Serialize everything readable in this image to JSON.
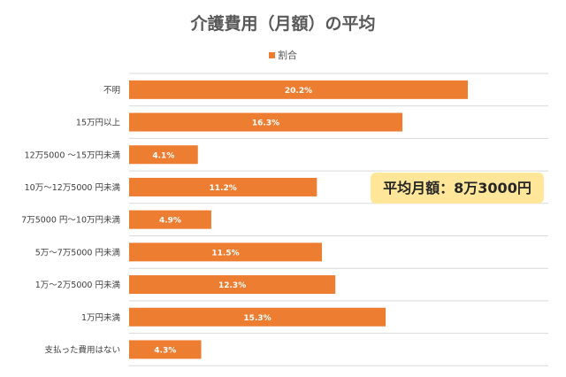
{
  "chart_data": {
    "type": "bar",
    "orientation": "horizontal",
    "title": "介護費用（月額）の平均",
    "legend": {
      "position": "top",
      "entries": [
        "割合"
      ]
    },
    "categories": [
      "不明",
      "15万円以上",
      "12万5000 〜15万円未満",
      "10万〜12万5000 円未満",
      "7万5000 円〜10万円未満",
      "5万〜7万5000 円未満",
      "1万〜2万5000 円未満",
      "1万円未満",
      "支払った費用はない"
    ],
    "series": [
      {
        "name": "割合",
        "values": [
          20.2,
          16.3,
          4.1,
          11.2,
          4.9,
          11.5,
          12.3,
          15.3,
          4.3
        ],
        "value_labels": [
          "20.2%",
          "16.3%",
          "4.1%",
          "11.2%",
          "4.9%",
          "11.5%",
          "12.3%",
          "15.3%",
          "4.3%"
        ],
        "color": "#ed7d31"
      }
    ],
    "xlim": [
      0,
      25
    ],
    "grid": true,
    "annotation": "平均月額：8万3000円"
  },
  "colors": {
    "bar": "#ed7d31",
    "grid": "#d9d9d9",
    "callout_bg": "#ffe699"
  }
}
